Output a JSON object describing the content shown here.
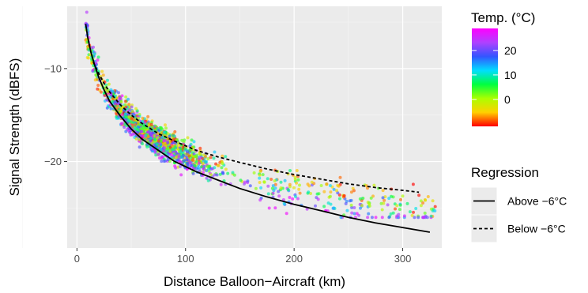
{
  "chart_data": {
    "type": "scatter",
    "xlabel": "Distance Balloon−Aircraft (km)",
    "ylabel": "Signal Strength (dBFS)",
    "xlim": [
      -9,
      336
    ],
    "ylim": [
      -29.3,
      -3.3
    ],
    "x_ticks": [
      {
        "value": 0,
        "label": "0"
      },
      {
        "value": 100,
        "label": "100"
      },
      {
        "value": 200,
        "label": "200"
      },
      {
        "value": 300,
        "label": "300"
      }
    ],
    "y_ticks": [
      {
        "value": -10,
        "label": "−10"
      },
      {
        "value": -20,
        "label": "−20"
      }
    ],
    "grid": true,
    "panel_background": "#ebebeb",
    "color_scale": {
      "title": "Temp. (°C)",
      "min": -11,
      "max": 29,
      "colors": [
        "#ff0000",
        "#ffd000",
        "#aaff00",
        "#00ff40",
        "#00ddff",
        "#3355ff",
        "#b040ff",
        "#ff00ff"
      ],
      "ticks": [
        {
          "value": 0,
          "label": "0"
        },
        {
          "value": 10,
          "label": "10"
        },
        {
          "value": 20,
          "label": "20"
        }
      ]
    },
    "regression_legend": {
      "title": "Regression",
      "items": [
        {
          "label": "Above −6°C",
          "dash": "solid"
        },
        {
          "label": "Below −6°C",
          "dash": "dashed"
        }
      ]
    },
    "regression_lines": [
      {
        "name": "Above −6°C",
        "dash": "solid",
        "x": [
          8,
          10,
          13,
          16,
          20,
          25,
          30,
          40,
          50,
          60,
          75,
          90,
          110,
          130,
          150,
          175,
          200,
          225,
          250,
          275,
          300,
          325
        ],
        "y": [
          -5.2,
          -6.7,
          -8.3,
          -9.5,
          -10.9,
          -12.3,
          -13.5,
          -15.1,
          -16.5,
          -17.6,
          -18.8,
          -20.0,
          -21.1,
          -22.0,
          -22.9,
          -23.8,
          -24.6,
          -25.3,
          -26.0,
          -26.6,
          -27.1,
          -27.6
        ]
      },
      {
        "name": "Below −6°C",
        "dash": "dashed",
        "x": [
          15,
          20,
          25,
          30,
          40,
          50,
          60,
          75,
          90,
          110,
          130,
          150,
          175,
          200,
          225,
          250,
          275,
          300,
          315
        ],
        "y": [
          -9.3,
          -10.5,
          -11.6,
          -12.5,
          -13.9,
          -15.0,
          -15.9,
          -17.0,
          -17.8,
          -18.8,
          -19.5,
          -20.1,
          -20.8,
          -21.4,
          -21.9,
          -22.4,
          -22.8,
          -23.1,
          -23.3
        ]
      }
    ],
    "points": {
      "description_free": true,
      "n": 1700,
      "x_range": [
        8,
        330
      ],
      "y_range": [
        -26,
        -3.5
      ],
      "opacity": 0.65,
      "trend_upper": {
        "a": 2.5,
        "b": -4.6
      },
      "trend_lower": {
        "a": 8.5,
        "b": -6.2
      }
    }
  }
}
